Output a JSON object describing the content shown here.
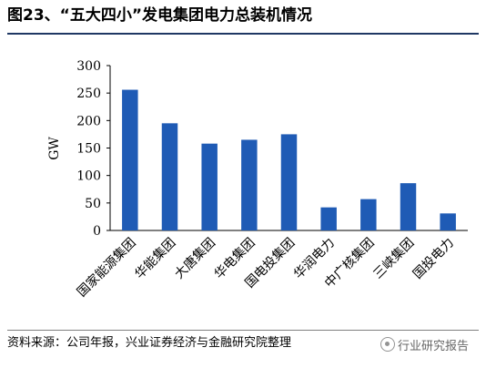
{
  "title": "图23、“五大四小”发电集团电力总装机情况",
  "source": "资料来源：公司年报，兴业证券经济与金融研究院整理",
  "watermark": "行业研究报告",
  "colors": {
    "bar": "#1f5bb5",
    "title_rule": "#1f3864"
  },
  "chart_data": {
    "type": "bar",
    "categories": [
      "国家能源集团",
      "华能集团",
      "大唐集团",
      "华电集团",
      "国电投集团",
      "华润电力",
      "中广核集团",
      "三峡集团",
      "国投电力"
    ],
    "values": [
      256,
      195,
      158,
      165,
      175,
      42,
      57,
      86,
      31
    ],
    "ylabel": "GW",
    "ylim": [
      0,
      300
    ],
    "yticks": [
      0,
      50,
      100,
      150,
      200,
      250,
      300
    ],
    "grid": false,
    "legend": "none"
  }
}
